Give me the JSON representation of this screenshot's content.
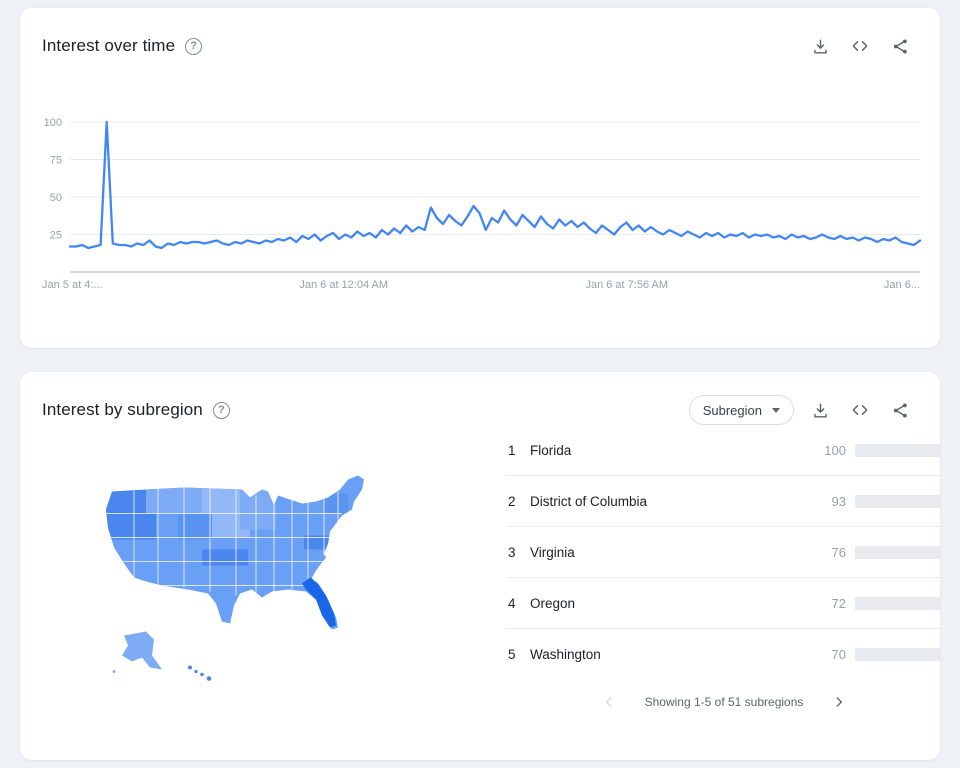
{
  "colors": {
    "page_bg": "#eef1f6",
    "accent": "#4285f4",
    "bar_track": "#e8eaed",
    "grid_line": "#e8eaed",
    "axis_line": "#bdc1c6",
    "axis_label": "#9aa0a6",
    "map_base": "#699ff4",
    "map_light": "#7dabf6",
    "map_lighter": "#92b8f8",
    "map_dark": "#4a86ee",
    "map_darkest": "#1a66e8"
  },
  "icons": {
    "help_glyph": "?"
  },
  "time_card": {
    "title": "Interest over time",
    "actions": {
      "download": "download",
      "embed": "embed",
      "share": "share"
    }
  },
  "subregion_card": {
    "title": "Interest by subregion",
    "dropdown_value": "Subregion",
    "pagination_text": "Showing 1-5 of 51 subregions",
    "actions": {
      "download": "download",
      "embed": "embed",
      "share": "share"
    }
  },
  "chart_data": [
    {
      "type": "line",
      "title": "Interest over time",
      "ylabel": "",
      "xlabel": "",
      "ylim": [
        0,
        100
      ],
      "yticks": [
        25,
        50,
        75,
        100
      ],
      "grid": true,
      "x_tick_labels": [
        "Jan 5 at 4:...",
        "Jan 6 at 12:04 AM",
        "Jan 6 at 7:56 AM",
        "Jan 6..."
      ],
      "x_tick_positions": [
        0,
        0.322,
        0.655,
        1
      ],
      "series_name": "Search interest",
      "values": [
        17,
        17,
        18,
        16,
        17,
        18,
        100,
        19,
        18,
        18,
        17,
        19,
        18,
        21,
        17,
        16,
        19,
        18,
        20,
        19,
        20,
        20,
        19,
        20,
        21,
        19,
        18,
        20,
        19,
        21,
        20,
        19,
        21,
        20,
        22,
        21,
        23,
        20,
        24,
        22,
        25,
        21,
        24,
        26,
        22,
        25,
        23,
        27,
        24,
        26,
        23,
        28,
        25,
        29,
        26,
        31,
        27,
        30,
        28,
        43,
        36,
        32,
        38,
        34,
        31,
        37,
        44,
        39,
        28,
        36,
        33,
        41,
        35,
        31,
        38,
        34,
        30,
        37,
        32,
        29,
        35,
        31,
        34,
        30,
        33,
        29,
        26,
        31,
        28,
        25,
        30,
        33,
        28,
        31,
        27,
        30,
        27,
        25,
        28,
        26,
        24,
        27,
        25,
        23,
        26,
        24,
        26,
        23,
        25,
        24,
        26,
        23,
        25,
        24,
        25,
        23,
        24,
        22,
        25,
        23,
        24,
        22,
        23,
        25,
        23,
        22,
        24,
        22,
        23,
        21,
        23,
        22,
        20,
        22,
        21,
        23,
        20,
        19,
        18,
        21
      ]
    },
    {
      "type": "bar",
      "title": "Interest by subregion",
      "xlim": [
        0,
        100
      ],
      "regions": [
        {
          "rank": 1,
          "name": "Florida",
          "value": 100
        },
        {
          "rank": 2,
          "name": "District of Columbia",
          "value": 93
        },
        {
          "rank": 3,
          "name": "Virginia",
          "value": 76
        },
        {
          "rank": 4,
          "name": "Oregon",
          "value": 72
        },
        {
          "rank": 5,
          "name": "Washington",
          "value": 70
        }
      ]
    }
  ]
}
